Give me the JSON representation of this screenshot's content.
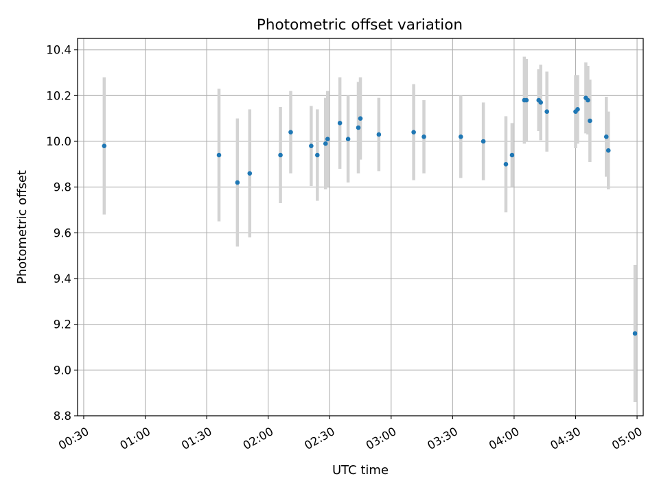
{
  "chart_data": {
    "type": "scatter",
    "title": "Photometric offset variation",
    "xlabel": "UTC time",
    "ylabel": "Photometric offset",
    "x_unit": "HH:MM UTC",
    "xlim": [
      "00:27",
      "05:03"
    ],
    "ylim": [
      8.8,
      10.45
    ],
    "grid": true,
    "x_ticks": [
      "00:30",
      "01:00",
      "01:30",
      "02:00",
      "02:30",
      "03:00",
      "03:30",
      "04:00",
      "04:30",
      "05:00"
    ],
    "y_ticks": [
      "8.8",
      "9.0",
      "9.2",
      "9.4",
      "9.6",
      "9.8",
      "10.0",
      "10.2",
      "10.4"
    ],
    "colors": {
      "point": "#1f77b4",
      "errorbar": "#d3d3d3",
      "grid": "#b0b0b0"
    },
    "points": [
      {
        "x": "00:40",
        "y": 9.98,
        "err": 0.3
      },
      {
        "x": "01:36",
        "y": 9.94,
        "err": 0.29
      },
      {
        "x": "01:45",
        "y": 9.82,
        "err": 0.28
      },
      {
        "x": "01:51",
        "y": 9.86,
        "err": 0.28
      },
      {
        "x": "02:06",
        "y": 9.94,
        "err": 0.21
      },
      {
        "x": "02:11",
        "y": 10.04,
        "err": 0.18
      },
      {
        "x": "02:21",
        "y": 9.98,
        "err": 0.175
      },
      {
        "x": "02:24",
        "y": 9.94,
        "err": 0.2
      },
      {
        "x": "02:28",
        "y": 9.99,
        "err": 0.2
      },
      {
        "x": "02:29",
        "y": 10.01,
        "err": 0.21
      },
      {
        "x": "02:35",
        "y": 10.08,
        "err": 0.2
      },
      {
        "x": "02:39",
        "y": 10.01,
        "err": 0.19
      },
      {
        "x": "02:44",
        "y": 10.06,
        "err": 0.2
      },
      {
        "x": "02:45",
        "y": 10.1,
        "err": 0.18
      },
      {
        "x": "02:54",
        "y": 10.03,
        "err": 0.16
      },
      {
        "x": "03:11",
        "y": 10.04,
        "err": 0.21
      },
      {
        "x": "03:16",
        "y": 10.02,
        "err": 0.16
      },
      {
        "x": "03:34",
        "y": 10.02,
        "err": 0.18
      },
      {
        "x": "03:45",
        "y": 10.0,
        "err": 0.17
      },
      {
        "x": "03:56",
        "y": 9.9,
        "err": 0.21
      },
      {
        "x": "03:59",
        "y": 9.94,
        "err": 0.14
      },
      {
        "x": "04:05",
        "y": 10.18,
        "err": 0.19
      },
      {
        "x": "04:06",
        "y": 10.18,
        "err": 0.18
      },
      {
        "x": "04:12",
        "y": 10.18,
        "err": 0.135
      },
      {
        "x": "04:13",
        "y": 10.17,
        "err": 0.165
      },
      {
        "x": "04:16",
        "y": 10.13,
        "err": 0.175
      },
      {
        "x": "04:30",
        "y": 10.13,
        "err": 0.16
      },
      {
        "x": "04:31",
        "y": 10.14,
        "err": 0.15
      },
      {
        "x": "04:35",
        "y": 10.19,
        "err": 0.155
      },
      {
        "x": "04:36",
        "y": 10.18,
        "err": 0.15
      },
      {
        "x": "04:37",
        "y": 10.09,
        "err": 0.18
      },
      {
        "x": "04:45",
        "y": 10.02,
        "err": 0.175
      },
      {
        "x": "04:46",
        "y": 9.96,
        "err": 0.17
      },
      {
        "x": "04:59",
        "y": 9.16,
        "err": 0.3
      }
    ]
  }
}
